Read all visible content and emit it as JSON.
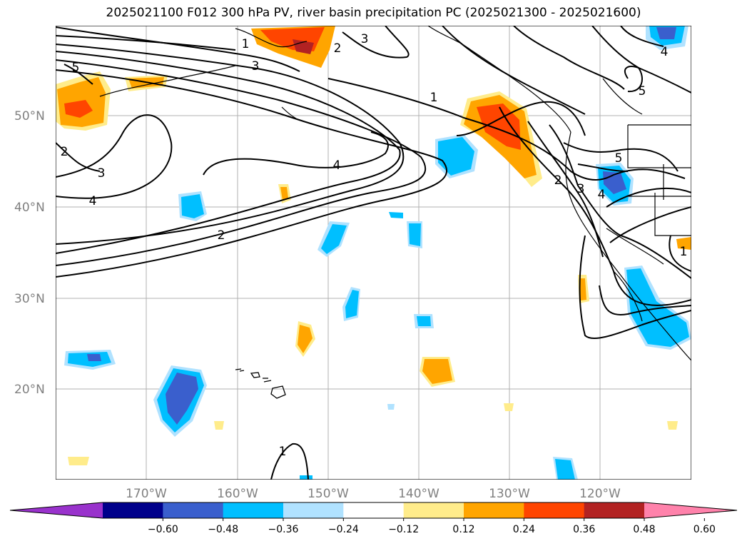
{
  "title": "2025021100 F012 300 hPa PV, river basin precipitation PC (2025021300 - 2025021600)",
  "lat_labels": [
    "50°N",
    "40°N",
    "30°N",
    "20°N"
  ],
  "lon_labels": [
    "170°W",
    "160°W",
    "150°W",
    "140°W",
    "130°W",
    "120°W"
  ],
  "contour_labels": [
    "1",
    "2",
    "3",
    "4",
    "5"
  ],
  "colorbar": {
    "colors": [
      "#9932cc",
      "#00008b",
      "#3a5fcd",
      "#00bfff",
      "#b0e2ff",
      "#ffffff",
      "#ffec8b",
      "#ffa500",
      "#ff4500",
      "#b22222",
      "#ff82ab"
    ],
    "tick_labels": [
      "−0.60",
      "−0.48",
      "−0.36",
      "−0.24",
      "−0.12",
      "0.12",
      "0.24",
      "0.36",
      "0.48",
      "0.60"
    ]
  }
}
